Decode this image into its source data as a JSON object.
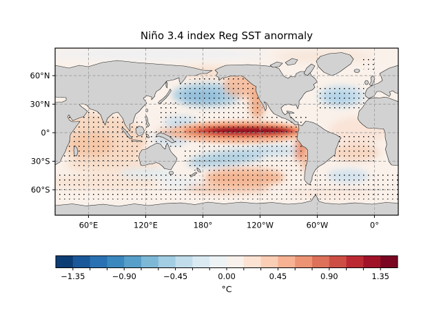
{
  "figure": {
    "title": "Niño 3.4 index Reg SST anormaly",
    "background_color": "#ffffff"
  },
  "map": {
    "x_ticks": [
      {
        "label": "60°E",
        "lon": 60
      },
      {
        "label": "120°E",
        "lon": 120
      },
      {
        "label": "180°",
        "lon": 180
      },
      {
        "label": "120°W",
        "lon": 240
      },
      {
        "label": "60°W",
        "lon": 300
      },
      {
        "label": "0°",
        "lon": 360
      }
    ],
    "y_ticks": [
      {
        "label": "60°N",
        "lat": 60
      },
      {
        "label": "30°N",
        "lat": 30
      },
      {
        "label": "0°",
        "lat": 0
      },
      {
        "label": "30°S",
        "lat": -30
      },
      {
        "label": "60°S",
        "lat": -60
      }
    ],
    "land_color": "#d2d2d2",
    "coastline_color": "#1a1a1a",
    "ocean_base_color": "#faf1ea",
    "gridline_color": "#a0a0a0",
    "stipple_color": "#0d0d0d"
  },
  "colorbar": {
    "unit": "°C",
    "tick_labels": [
      "−1.35",
      "−0.90",
      "−0.45",
      "0.00",
      "0.45",
      "0.90",
      "1.35"
    ],
    "tick_values": [
      -1.35,
      -0.9,
      -0.45,
      0.0,
      0.45,
      0.9,
      1.35
    ],
    "vmin": -1.5,
    "vmax": 1.5,
    "minor_step": 0.15,
    "segment_colors": [
      "#0c3d74",
      "#1a5899",
      "#2971b2",
      "#3a88bd",
      "#579fca",
      "#7eb8d7",
      "#a2cde2",
      "#c1ddeb",
      "#dae9f2",
      "#edf2f5",
      "#f8f0eb",
      "#fbe2d3",
      "#facdb5",
      "#f6b293",
      "#ec9374",
      "#dd715a",
      "#cd4e44",
      "#bb2a33",
      "#9f1228",
      "#7a0622"
    ]
  },
  "chart_data": {
    "type": "heatmap",
    "subtype": "global map of regressed SST anomalies with significance stippling",
    "title": "Niño 3.4 index Reg SST anormaly",
    "projection": "PlateCarree, Pacific-centered, longitude span 25°E–385°E, latitude span ~88°S–88°N",
    "x_tick_labels": [
      "60°E",
      "120°E",
      "180°",
      "120°W",
      "60°W",
      "0°"
    ],
    "y_tick_labels": [
      "60°N",
      "30°N",
      "0°",
      "30°S",
      "60°S"
    ],
    "grid": "dashed gray graticule every 60° lon / 30° lat",
    "colorbar": {
      "orientation": "horizontal, below map",
      "unit": "°C",
      "range": [
        -1.5,
        1.5
      ],
      "n_segments": 20,
      "segment_width": 0.15,
      "major_ticks": [
        -1.35,
        -0.9,
        -0.45,
        0.0,
        0.45,
        0.9,
        1.35
      ],
      "colormap": "RdBu_r (blue = negative, red = positive)"
    },
    "features": [
      {
        "region": "equatorial central–eastern Pacific tongue (160°E–80°W, ±5° lat)",
        "anomaly_c": 1.4,
        "description": "strong positive core (dark red), stippled"
      },
      {
        "region": "west coast of the Americas / Gulf of Alaska",
        "anomaly_c": 0.5,
        "description": "positive coastal band, stippled"
      },
      {
        "region": "North Pacific 30–45°N, 170°E–150°W",
        "anomaly_c": -0.4,
        "description": "negative (light blue) horseshoe lobe, stippled"
      },
      {
        "region": "South Pacific 20–35°S, 175°E–125°W",
        "anomaly_c": -0.4,
        "description": "negative (light blue) horseshoe lobe, stippled"
      },
      {
        "region": "south-central Pacific 45–60°S",
        "anomaly_c": 0.45,
        "description": "positive patch, stippled"
      },
      {
        "region": "Indian Ocean",
        "anomaly_c": 0.3,
        "description": "weak positive basin-wide warming, stippled"
      },
      {
        "region": "North Atlantic 30–45°N",
        "anomaly_c": -0.3,
        "description": "weak negative patch, stippled"
      },
      {
        "region": "tropical and South Atlantic",
        "anomaly_c": 0.2,
        "description": "weak positive, patchy stippling"
      },
      {
        "region": "Southern Ocean 50–65°S",
        "anomaly_c": 0.15,
        "description": "weak mixed anomalies, widespread stippling"
      }
    ],
    "stippling_meaning": "regular grid of small black dots marking significant regions",
    "land": "flat light-gray continents with thin black coastlines"
  }
}
